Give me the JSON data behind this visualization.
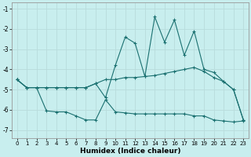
{
  "title": "",
  "xlabel": "Humidex (Indice chaleur)",
  "ylabel": "",
  "bg_color": "#c8eeee",
  "grid_color": "#b8dcdc",
  "line_color": "#1a7070",
  "xlim": [
    -0.5,
    23.5
  ],
  "ylim": [
    -7.4,
    -0.7
  ],
  "yticks": [
    -7,
    -6,
    -5,
    -4,
    -3,
    -2,
    -1
  ],
  "xticks": [
    0,
    1,
    2,
    3,
    4,
    5,
    6,
    7,
    8,
    9,
    10,
    11,
    12,
    13,
    14,
    15,
    16,
    17,
    18,
    19,
    20,
    21,
    22,
    23
  ],
  "line1_x": [
    0,
    1,
    2,
    3,
    4,
    5,
    6,
    7,
    8,
    9,
    10,
    11,
    12,
    13,
    14,
    15,
    16,
    17,
    18,
    19,
    20,
    21,
    22,
    23
  ],
  "line1_y": [
    -4.5,
    -4.9,
    -4.9,
    -4.9,
    -4.9,
    -4.9,
    -4.9,
    -4.9,
    -4.7,
    -4.5,
    -4.5,
    -4.4,
    -4.4,
    -4.35,
    -4.3,
    -4.2,
    -4.1,
    -4.0,
    -3.9,
    -4.1,
    -4.4,
    -4.6,
    -5.0,
    -6.5
  ],
  "line2_x": [
    0,
    1,
    2,
    3,
    4,
    5,
    6,
    7,
    8,
    9,
    10,
    11,
    12,
    13,
    14,
    15,
    16,
    17,
    18,
    19,
    20,
    21,
    22,
    23
  ],
  "line2_y": [
    -4.5,
    -4.9,
    -4.9,
    -4.9,
    -4.9,
    -4.9,
    -4.9,
    -4.9,
    -4.7,
    -5.4,
    -3.8,
    -2.4,
    -2.7,
    -4.35,
    -1.4,
    -2.65,
    -1.55,
    -3.3,
    -2.1,
    -4.0,
    -4.15,
    -4.6,
    -5.0,
    -6.5
  ],
  "line3_x": [
    0,
    1,
    2,
    3,
    4,
    5,
    6,
    7,
    8,
    9,
    10,
    11,
    12,
    13,
    14,
    15,
    16,
    17,
    18,
    19,
    20,
    21,
    22,
    23
  ],
  "line3_y": [
    -4.5,
    -4.9,
    -4.9,
    -6.05,
    -6.1,
    -6.1,
    -6.3,
    -6.5,
    -6.5,
    -5.5,
    -6.1,
    -6.15,
    -6.2,
    -6.2,
    -6.2,
    -6.2,
    -6.2,
    -6.2,
    -6.3,
    -6.3,
    -6.5,
    -6.55,
    -6.6,
    -6.55
  ]
}
